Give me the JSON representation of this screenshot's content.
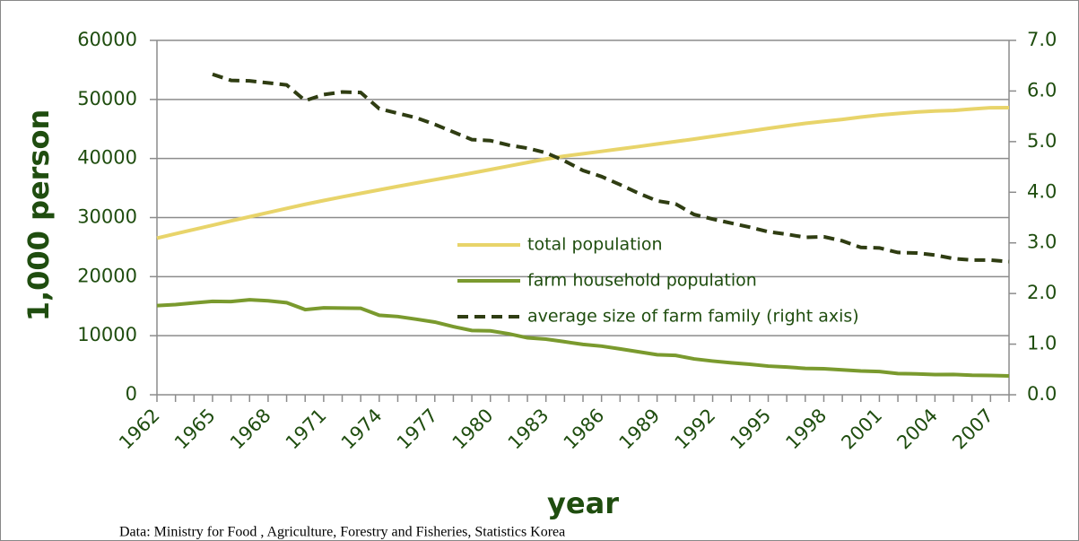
{
  "chart_data": {
    "type": "line",
    "y_label": "1,000   person",
    "x_label": "year",
    "source": "Data: Ministry for Food , Agriculture, Forestry and Fisheries, Statistics Korea",
    "x": [
      1962,
      1963,
      1964,
      1965,
      1966,
      1967,
      1968,
      1969,
      1970,
      1971,
      1972,
      1973,
      1974,
      1975,
      1976,
      1977,
      1978,
      1979,
      1980,
      1981,
      1982,
      1983,
      1984,
      1985,
      1986,
      1987,
      1988,
      1989,
      1990,
      1991,
      1992,
      1993,
      1994,
      1995,
      1996,
      1997,
      1998,
      1999,
      2000,
      2001,
      2002,
      2003,
      2004,
      2005,
      2006,
      2007,
      2008
    ],
    "xlim": [
      1962,
      2008
    ],
    "xticks": [
      1962,
      1965,
      1968,
      1971,
      1974,
      1977,
      1980,
      1983,
      1986,
      1989,
      1992,
      1995,
      1998,
      2001,
      2004,
      2007
    ],
    "ylim": [
      0,
      60000
    ],
    "yticks": [
      0,
      10000,
      20000,
      30000,
      40000,
      50000,
      60000
    ],
    "y2lim": [
      0,
      7
    ],
    "y2ticks": [
      {
        "value": 0,
        "label": "0.0"
      },
      {
        "value": 1,
        "label": "1.0"
      },
      {
        "value": 2,
        "label": "2.0"
      },
      {
        "value": 3,
        "label": "3.0"
      },
      {
        "value": 4,
        "label": "4.0"
      },
      {
        "value": 5,
        "label": "5.0"
      },
      {
        "value": 6,
        "label": "6.0"
      },
      {
        "value": 7,
        "label": "7.0"
      }
    ],
    "grid": true,
    "series": [
      {
        "name": "total population",
        "color": "#e8d46a",
        "dash": false,
        "values": [
          26513,
          27262,
          27984,
          28705,
          29436,
          30131,
          30838,
          31544,
          32241,
          32883,
          33505,
          34103,
          34692,
          35281,
          35849,
          36412,
          36969,
          37534,
          38124,
          38723,
          39326,
          39910,
          40406,
          40806,
          41214,
          41622,
          42031,
          42449,
          42869,
          43296,
          43748,
          44195,
          44642,
          45093,
          45525,
          45954,
          46287,
          46617,
          47008,
          47357,
          47622,
          47859,
          48039,
          48138,
          48372,
          48598,
          48607
        ]
      },
      {
        "name": "farm household population",
        "color": "#7a9a2e",
        "dash": false,
        "values": [
          15097,
          15266,
          15553,
          15812,
          15781,
          16078,
          15908,
          15589,
          14422,
          14712,
          14677,
          14645,
          13459,
          13244,
          12785,
          12309,
          11528,
          10883,
          10827,
          10320,
          9642,
          9420,
          8979,
          8521,
          8233,
          7771,
          7272,
          6786,
          6661,
          6068,
          5707,
          5407,
          5167,
          4851,
          4692,
          4468,
          4400,
          4210,
          4031,
          3933,
          3591,
          3530,
          3415,
          3434,
          3304,
          3274,
          3187
        ]
      },
      {
        "name": "average size of farm family (right axis)",
        "color": "#2f3d12",
        "dash": true,
        "axis": "y2",
        "values": [
          null,
          null,
          null,
          6.33,
          6.21,
          6.2,
          6.16,
          6.12,
          5.81,
          5.93,
          5.98,
          5.97,
          5.65,
          5.56,
          5.47,
          5.34,
          5.19,
          5.04,
          5.02,
          4.93,
          4.87,
          4.78,
          4.62,
          4.43,
          4.31,
          4.15,
          3.98,
          3.83,
          3.77,
          3.56,
          3.47,
          3.39,
          3.31,
          3.22,
          3.17,
          3.11,
          3.12,
          3.04,
          2.91,
          2.9,
          2.81,
          2.8,
          2.76,
          2.69,
          2.66,
          2.66,
          2.63
        ]
      }
    ]
  }
}
